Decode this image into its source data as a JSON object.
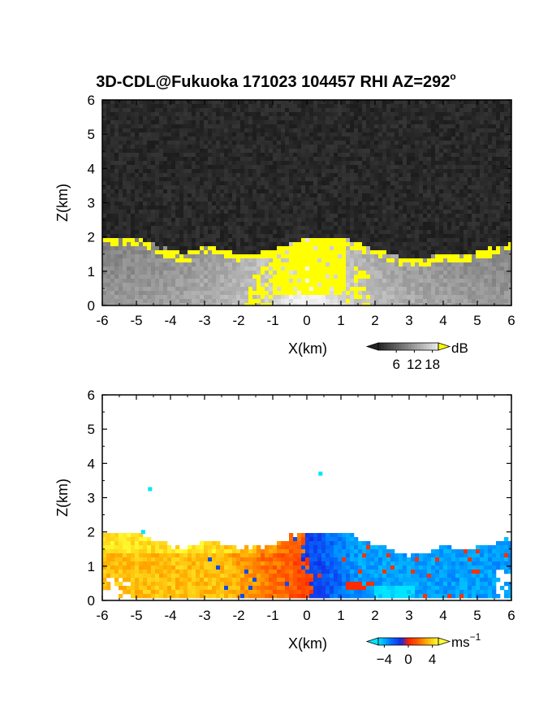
{
  "title": "3D-CDL@Fukuoka 171023 104457 RHI AZ=292",
  "title_degree": "o",
  "chart_data": [
    {
      "type": "heatmap",
      "name": "reflectivity",
      "xlabel": "X(km)",
      "ylabel": "Z(km)",
      "xlim": [
        -6,
        6
      ],
      "ylim": [
        0,
        6
      ],
      "xticks": [
        "-6",
        "-5",
        "-4",
        "-3",
        "-2",
        "-1",
        "0",
        "1",
        "2",
        "3",
        "4",
        "5",
        "6"
      ],
      "yticks": [
        "0",
        "1",
        "2",
        "3",
        "4",
        "5",
        "6"
      ],
      "colorbar": {
        "unit": "dB",
        "ticks": [
          "6",
          "12",
          "18"
        ],
        "range": [
          0,
          20
        ]
      },
      "boundary_top_km": [
        [
          -6,
          2.0
        ],
        [
          -5,
          1.95
        ],
        [
          -4.8,
          1.9
        ],
        [
          -4.5,
          1.75
        ],
        [
          -4,
          1.6
        ],
        [
          -3.5,
          1.5
        ],
        [
          -3,
          1.75
        ],
        [
          -2.5,
          1.65
        ],
        [
          -2,
          1.5
        ],
        [
          -1.5,
          1.55
        ],
        [
          -1,
          1.6
        ],
        [
          -0.5,
          1.85
        ],
        [
          0,
          1.95
        ],
        [
          0.5,
          1.95
        ],
        [
          1,
          2.0
        ],
        [
          1.5,
          1.85
        ],
        [
          2,
          1.65
        ],
        [
          2.5,
          1.45
        ],
        [
          3,
          1.35
        ],
        [
          3.5,
          1.4
        ],
        [
          4,
          1.55
        ],
        [
          4.5,
          1.45
        ],
        [
          5,
          1.55
        ],
        [
          5.5,
          1.7
        ],
        [
          6,
          1.85
        ]
      ],
      "high_core_x_km": [
        -1.0,
        1.2
      ],
      "colors": {
        "saturated": "#ffff00",
        "noise_base": "#2e2e2e"
      }
    },
    {
      "type": "heatmap",
      "name": "doppler_velocity",
      "xlabel": "X(km)",
      "ylabel": "Z(km)",
      "xlim": [
        -6,
        6
      ],
      "ylim": [
        0,
        6
      ],
      "xticks": [
        "-6",
        "-5",
        "-4",
        "-3",
        "-2",
        "-1",
        "0",
        "1",
        "2",
        "3",
        "4",
        "5",
        "6"
      ],
      "yticks": [
        "0",
        "1",
        "2",
        "3",
        "4",
        "5",
        "6"
      ],
      "colorbar": {
        "unit_base": "ms",
        "unit_exp": "−1",
        "ticks": [
          "−4",
          "0",
          "4"
        ],
        "range": [
          -5,
          5
        ]
      },
      "sign_change_x_km": 0,
      "velocity_left_ms": 3.5,
      "velocity_right_ms": -4.0,
      "isolated_points_km": [
        [
          -4.6,
          3.25
        ],
        [
          0.4,
          3.7
        ],
        [
          -4.8,
          2.0
        ]
      ],
      "colors": {
        "cyan": "#00e5ff",
        "blue": "#0055ff",
        "red": "#ff2200",
        "orange": "#ff9900",
        "yellow": "#ffff33"
      }
    }
  ]
}
